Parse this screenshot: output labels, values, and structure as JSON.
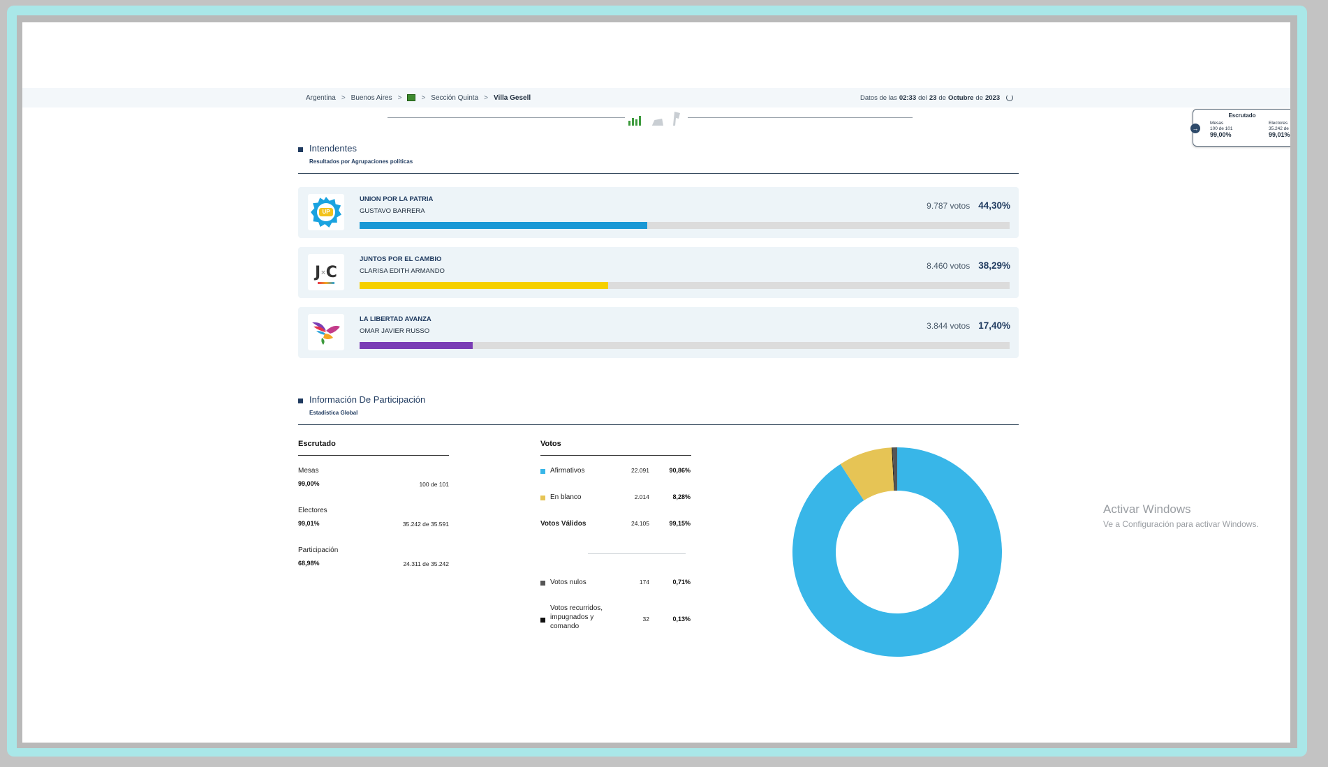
{
  "breadcrumb": {
    "items": [
      "Argentina",
      "Buenos Aires",
      "Sección Quinta"
    ],
    "current": "Villa Gesell",
    "separator": ">"
  },
  "updated": {
    "prefix": "Datos de las",
    "time": "02:33",
    "del": "del",
    "day": "23",
    "de1": "de",
    "month": "Octubre",
    "de2": "de",
    "year": "2023"
  },
  "float_widget": {
    "title": "Escrutado",
    "mesas_label": "Mesas",
    "mesas_detail": "100 de 101",
    "mesas_pct": "99,00%",
    "electores_label": "Electores",
    "electores_detail": "35.242 de",
    "electores_pct": "99,01%"
  },
  "intendentes": {
    "title": "Intendentes",
    "subtitle": "Resultados por Agrupaciones políticas",
    "votes_suffix": "votos",
    "candidates": [
      {
        "party": "UNION POR LA PATRIA",
        "candidate": "GUSTAVO BARRERA",
        "votes": "9.787",
        "pct_label": "44,30%",
        "pct": 44.3,
        "color": "#1a98d5",
        "logo": "up-logo"
      },
      {
        "party": "JUNTOS POR EL CAMBIO",
        "candidate": "CLARISA EDITH ARMANDO",
        "votes": "8.460",
        "pct_label": "38,29%",
        "pct": 38.29,
        "color": "#f5d000",
        "logo": "jxc-logo"
      },
      {
        "party": "LA LIBERTAD AVANZA",
        "candidate": "OMAR JAVIER RUSSO",
        "votes": "3.844",
        "pct_label": "17,40%",
        "pct": 17.4,
        "color": "#7a3db5",
        "logo": "lla-logo"
      }
    ]
  },
  "participacion": {
    "title": "Información De Participación",
    "subtitle": "Estadística Global",
    "escrutado": {
      "title": "Escrutado",
      "rows": [
        {
          "label": "Mesas",
          "pct": "99,00%",
          "detail": "100 de 101"
        },
        {
          "label": "Electores",
          "pct": "99,01%",
          "detail": "35.242 de 35.591"
        },
        {
          "label": "Participación",
          "pct": "68,98%",
          "detail": "24.311 de 35.242"
        }
      ]
    },
    "votos": {
      "title": "Votos",
      "rows": [
        {
          "label": "Afirmativos",
          "num": "22.091",
          "pct": "90,86%",
          "color": "#38b6e8"
        },
        {
          "label": "En blanco",
          "num": "2.014",
          "pct": "8,28%",
          "color": "#e6c455"
        }
      ],
      "validos": {
        "label": "Votos Válidos",
        "num": "24.105",
        "pct": "99,15%"
      },
      "nulos": {
        "label": "Votos nulos",
        "num": "174",
        "pct": "0,71%",
        "color": "#555555"
      },
      "recurridos": {
        "label": "Votos recurridos, impugnados y comando",
        "num": "32",
        "pct": "0,13%",
        "color": "#111111"
      }
    }
  },
  "chart_data": {
    "type": "pie",
    "donut": true,
    "categories": [
      "Afirmativos",
      "En blanco",
      "Votos nulos",
      "Votos recurridos, impugnados y comando"
    ],
    "values": [
      90.86,
      8.28,
      0.71,
      0.13
    ],
    "colors": [
      "#38b6e8",
      "#e6c455",
      "#555555",
      "#111111"
    ]
  },
  "watermark": {
    "line1": "Activar Windows",
    "line2": "Ve a Configuración para activar Windows."
  }
}
